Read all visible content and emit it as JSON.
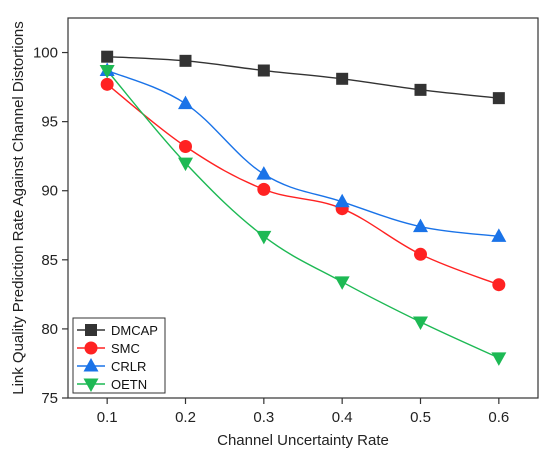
{
  "chart_data": {
    "type": "line",
    "title": "",
    "xlabel": "Channel Uncertainty Rate",
    "ylabel": "Link Quality Prediction Rate Against Channel Distortions",
    "x": [
      0.1,
      0.2,
      0.3,
      0.4,
      0.5,
      0.6
    ],
    "x_tick_labels": [
      "0.1",
      "0.2",
      "0.3",
      "0.4",
      "0.5",
      "0.6"
    ],
    "xlim": [
      0.05,
      0.65
    ],
    "ylim": [
      75,
      102.5
    ],
    "y_ticks": [
      75,
      80,
      85,
      90,
      95,
      100
    ],
    "y_tick_labels": [
      "75",
      "80",
      "85",
      "90",
      "95",
      "100"
    ],
    "grid": false,
    "legend_position": "bottom-left",
    "series": [
      {
        "name": "DMCAP",
        "values": [
          99.7,
          99.4,
          98.7,
          98.1,
          97.3,
          96.7
        ],
        "color": "#333333",
        "marker": "square"
      },
      {
        "name": "SMC",
        "values": [
          97.7,
          93.2,
          90.1,
          88.7,
          85.4,
          83.2
        ],
        "color": "#ff2222",
        "marker": "circle"
      },
      {
        "name": "CRLR",
        "values": [
          98.7,
          96.3,
          91.2,
          89.2,
          87.4,
          86.7
        ],
        "color": "#1a73e8",
        "marker": "triangle-up"
      },
      {
        "name": "OETN",
        "values": [
          98.7,
          92.0,
          86.7,
          83.4,
          80.5,
          77.9
        ],
        "color": "#1db954",
        "marker": "triangle-down"
      }
    ]
  }
}
